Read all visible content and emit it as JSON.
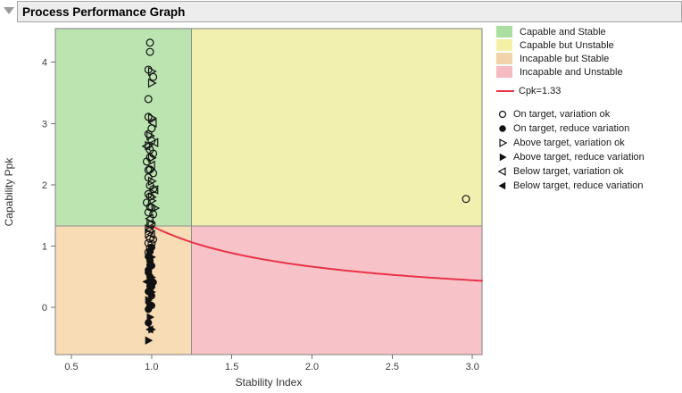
{
  "header": {
    "title": "Process Performance Graph"
  },
  "legend": {
    "regions": [
      {
        "label": "Capable and Stable",
        "color": "#abdfa2"
      },
      {
        "label": "Capable but Unstable",
        "color": "#f4f1a6"
      },
      {
        "label": "Incapable but Stable",
        "color": "#f2d3ab"
      },
      {
        "label": "Incapable and Unstable",
        "color": "#f6bac1"
      }
    ],
    "cpk": {
      "label": "Cpk=1.33",
      "color": "#e8334a"
    },
    "markers": [
      {
        "marker": "circle-open",
        "label": "On target, variation ok"
      },
      {
        "marker": "circle-filled",
        "label": "On target, reduce variation"
      },
      {
        "marker": "tri-right-open",
        "label": "Above target, variation ok"
      },
      {
        "marker": "tri-right-filled",
        "label": "Above target, reduce variation"
      },
      {
        "marker": "tri-left-open",
        "label": "Below target, variation ok"
      },
      {
        "marker": "tri-left-filled",
        "label": "Below target, reduce variation"
      }
    ]
  },
  "chart_data": {
    "type": "scatter",
    "title": "Process Performance Graph",
    "xlabel": "Stability Index",
    "ylabel": "Capability Ppk",
    "xlim": [
      0.4,
      3.06
    ],
    "ylim": [
      -0.77,
      4.55
    ],
    "x_ticks": [
      0.5,
      1.0,
      1.5,
      2.0,
      2.5,
      3.0
    ],
    "y_ticks": [
      0,
      1,
      2,
      3,
      4
    ],
    "grid": false,
    "legend_position": "right",
    "boundaries": {
      "stability_index": 1.25,
      "ppk": 1.33
    },
    "cpk_curve": {
      "label": "Cpk=1.33",
      "cpk": 1.33,
      "x_start": 1.0,
      "x_end": 3.06,
      "color": "#e8334a"
    },
    "region_colors": {
      "capable_stable": "#bce4b1",
      "capable_unstable": "#f2f0ae",
      "incapable_stable": "#f8dcb6",
      "incapable_unstable": "#f8c3c8"
    },
    "points": [
      [
        0.99,
        4.32,
        "circle-open"
      ],
      [
        0.99,
        4.17,
        "circle-open"
      ],
      [
        0.98,
        3.88,
        "circle-open"
      ],
      [
        1.0,
        3.85,
        "tri-right-open"
      ],
      [
        1.01,
        3.76,
        "circle-open"
      ],
      [
        1.0,
        3.66,
        "tri-right-open"
      ],
      [
        0.98,
        3.4,
        "circle-open"
      ],
      [
        0.98,
        3.11,
        "circle-open"
      ],
      [
        1.0,
        3.09,
        "tri-right-open"
      ],
      [
        1.01,
        3.01,
        "tri-left-open"
      ],
      [
        1.0,
        2.92,
        "circle-open"
      ],
      [
        0.98,
        2.83,
        "circle-open"
      ],
      [
        0.99,
        2.8,
        "tri-right-open"
      ],
      [
        1.0,
        2.72,
        "circle-open"
      ],
      [
        1.02,
        2.69,
        "tri-left-open"
      ],
      [
        0.98,
        2.64,
        "tri-right-open"
      ],
      [
        0.97,
        2.63,
        "tri-left-open"
      ],
      [
        0.99,
        2.57,
        "circle-open"
      ],
      [
        1.01,
        2.51,
        "circle-open"
      ],
      [
        0.99,
        2.45,
        "circle-open"
      ],
      [
        1.0,
        2.44,
        "tri-right-open"
      ],
      [
        0.97,
        2.38,
        "circle-open"
      ],
      [
        1.0,
        2.32,
        "tri-left-open"
      ],
      [
        0.99,
        2.25,
        "circle-open"
      ],
      [
        0.98,
        2.24,
        "circle-open"
      ],
      [
        1.01,
        2.19,
        "circle-open"
      ],
      [
        0.98,
        2.12,
        "circle-open"
      ],
      [
        1.0,
        2.06,
        "tri-right-open"
      ],
      [
        0.99,
        1.99,
        "circle-open"
      ],
      [
        1.01,
        1.93,
        "circle-open"
      ],
      [
        1.02,
        1.92,
        "tri-left-open"
      ],
      [
        0.98,
        1.85,
        "circle-open"
      ],
      [
        0.99,
        1.81,
        "circle-open"
      ],
      [
        1.0,
        1.8,
        "tri-right-open"
      ],
      [
        1.0,
        1.74,
        "tri-right-open"
      ],
      [
        0.97,
        1.71,
        "circle-open"
      ],
      [
        0.99,
        1.64,
        "circle-open"
      ],
      [
        1.0,
        1.63,
        "circle-open"
      ],
      [
        1.02,
        1.62,
        "tri-right-open"
      ],
      [
        0.98,
        1.55,
        "circle-open"
      ],
      [
        1.01,
        1.52,
        "circle-open"
      ],
      [
        0.99,
        1.45,
        "tri-left-open"
      ],
      [
        0.99,
        1.37,
        "tri-right-open"
      ],
      [
        1.0,
        1.36,
        "circle-open"
      ],
      [
        0.98,
        1.28,
        "tri-right-open"
      ],
      [
        0.99,
        1.27,
        "tri-left-open"
      ],
      [
        0.98,
        1.2,
        "tri-right-open"
      ],
      [
        1.0,
        1.19,
        "tri-left-open"
      ],
      [
        0.99,
        1.12,
        "circle-open"
      ],
      [
        1.01,
        1.11,
        "circle-open"
      ],
      [
        0.98,
        1.05,
        "circle-open"
      ],
      [
        1.0,
        1.04,
        "circle-open"
      ],
      [
        1.0,
        0.98,
        "circle-filled"
      ],
      [
        0.99,
        0.97,
        "circle-open"
      ],
      [
        0.99,
        0.91,
        "circle-filled"
      ],
      [
        0.98,
        0.9,
        "circle-open"
      ],
      [
        0.98,
        0.83,
        "circle-filled"
      ],
      [
        1.0,
        0.82,
        "tri-right-filled"
      ],
      [
        0.99,
        0.76,
        "circle-filled"
      ],
      [
        0.99,
        0.69,
        "circle-filled"
      ],
      [
        1.0,
        0.68,
        "circle-filled"
      ],
      [
        0.98,
        0.61,
        "circle-filled"
      ],
      [
        0.98,
        0.57,
        "circle-filled"
      ],
      [
        0.99,
        0.5,
        "circle-filled"
      ],
      [
        1.0,
        0.49,
        "tri-right-filled"
      ],
      [
        0.97,
        0.42,
        "tri-left-filled"
      ],
      [
        1.01,
        0.41,
        "circle-filled"
      ],
      [
        0.99,
        0.35,
        "circle-filled"
      ],
      [
        1.0,
        0.34,
        "circle-filled"
      ],
      [
        0.98,
        0.26,
        "circle-filled"
      ],
      [
        0.99,
        0.25,
        "tri-left-filled"
      ],
      [
        1.0,
        0.25,
        "tri-right-filled"
      ],
      [
        1.0,
        0.19,
        "circle-filled"
      ],
      [
        0.98,
        0.12,
        "tri-right-filled"
      ],
      [
        0.99,
        0.04,
        "circle-filled"
      ],
      [
        1.0,
        0.03,
        "circle-filled"
      ],
      [
        0.98,
        -0.03,
        "circle-filled"
      ],
      [
        0.99,
        -0.16,
        "tri-right-filled"
      ],
      [
        0.98,
        -0.25,
        "circle-filled"
      ],
      [
        0.99,
        -0.36,
        "tri-left-filled"
      ],
      [
        1.0,
        -0.36,
        "tri-right-filled"
      ],
      [
        0.98,
        -0.54,
        "tri-right-filled"
      ],
      [
        2.96,
        1.77,
        "circle-open"
      ]
    ]
  }
}
